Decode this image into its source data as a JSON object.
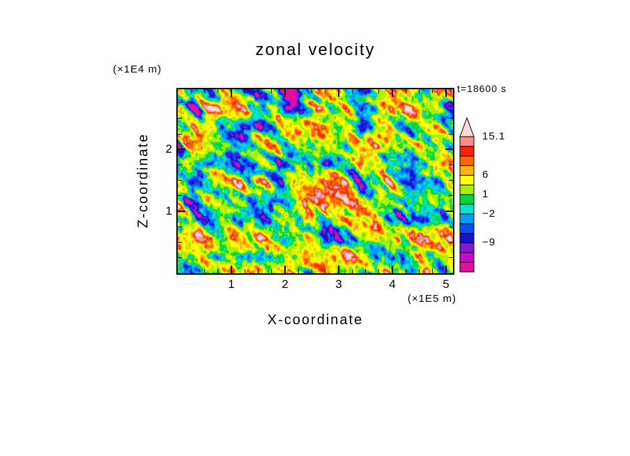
{
  "page": {
    "background": "#FFFFFF",
    "frame_color": "#000000"
  },
  "chart_data": {
    "type": "heatmap",
    "title": "zonal velocity",
    "annotation": "t=18600 s",
    "xlabel": "X-coordinate",
    "x_unit": "(×1E5 m)",
    "ylabel": "Z-coordinate",
    "y_unit": "(×1E4 m)",
    "x_range": [
      0,
      5.13
    ],
    "y_range": [
      0,
      2.97
    ],
    "x_major_ticks": [
      1,
      2,
      3,
      4,
      5
    ],
    "x_minor_step": 0.25,
    "y_major_ticks": [
      1,
      2
    ],
    "y_minor_step": 0.25,
    "grid": false,
    "legend_position": "right",
    "colorbar": {
      "labeled_levels": [
        {
          "label": "15.1",
          "value": 15.1
        },
        {
          "label": "6",
          "value": 6
        },
        {
          "label": "1",
          "value": 1
        },
        {
          "label": "−2",
          "value": -2
        },
        {
          "label": "−9",
          "value": -9
        }
      ],
      "levels": [
        -13,
        -11,
        -9,
        -6,
        -4,
        -2,
        -0.5,
        1,
        3.5,
        6,
        8,
        10,
        12,
        15.1
      ],
      "colors": [
        "#E80CA0",
        "#C40CC8",
        "#8814D8",
        "#1810D0",
        "#0A50FA",
        "#00A0FF",
        "#00E6D2",
        "#00D83C",
        "#A8F000",
        "#FFFF00",
        "#FFB400",
        "#FF6400",
        "#FF2000",
        "#FF8C8C"
      ],
      "over_color": "#FFD8D8"
    },
    "field": {
      "description": "turbulent 2-D velocity field spanning approx -13 to 15.1 (procedurally regenerated)",
      "seed": 7,
      "mean": 1.3,
      "amplitude": 8.0
    }
  }
}
